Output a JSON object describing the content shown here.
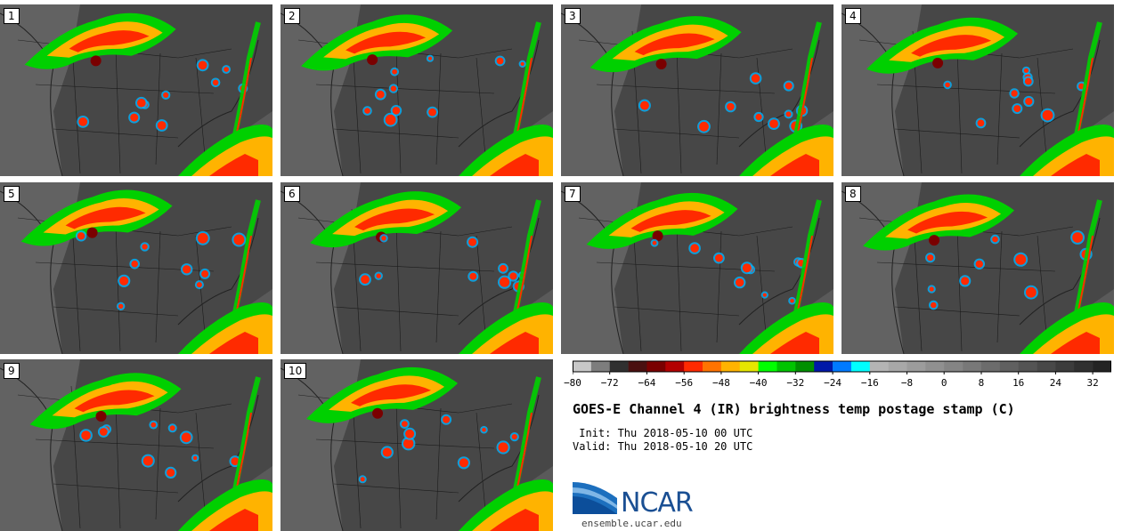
{
  "panels": [
    {
      "label": "1"
    },
    {
      "label": "2"
    },
    {
      "label": "3"
    },
    {
      "label": "4"
    },
    {
      "label": "5"
    },
    {
      "label": "6"
    },
    {
      "label": "7"
    },
    {
      "label": "8"
    },
    {
      "label": "9"
    },
    {
      "label": "10"
    }
  ],
  "colorbar": {
    "colors": [
      "#c8c8c8",
      "#7d7d7d",
      "#303030",
      "#4a1010",
      "#7a0000",
      "#b30000",
      "#ff2a00",
      "#ff7300",
      "#ffb300",
      "#e6e600",
      "#00ff00",
      "#00c400",
      "#008f00",
      "#0018a8",
      "#007aff",
      "#00ffff",
      "#b4b4b4",
      "#a8a8a8",
      "#9c9c9c",
      "#909090",
      "#848484",
      "#787878",
      "#6c6c6c",
      "#606060",
      "#545454",
      "#484848",
      "#3c3c3c",
      "#303030",
      "#242424"
    ],
    "tick_labels": [
      "−80",
      "−72",
      "−64",
      "−56",
      "−48",
      "−40",
      "−32",
      "−24",
      "−16",
      "−8",
      "0",
      "8",
      "16",
      "24",
      "32"
    ]
  },
  "title": "GOES-E Channel 4 (IR) brightness temp postage stamp (C)",
  "init": "Init: Thu 2018-05-10 00 UTC",
  "valid": "Valid: Thu 2018-05-10 20 UTC",
  "logo_text": "NCAR",
  "url": "ensemble.ucar.edu",
  "palette": {
    "land": "#474747",
    "land_west": "#6e6e6e",
    "ocean": "#303030",
    "border": "#111111",
    "cloud_cold": "#ff2a00",
    "cloud_warm": "#00d000",
    "cloud_mid": "#ffb300"
  }
}
